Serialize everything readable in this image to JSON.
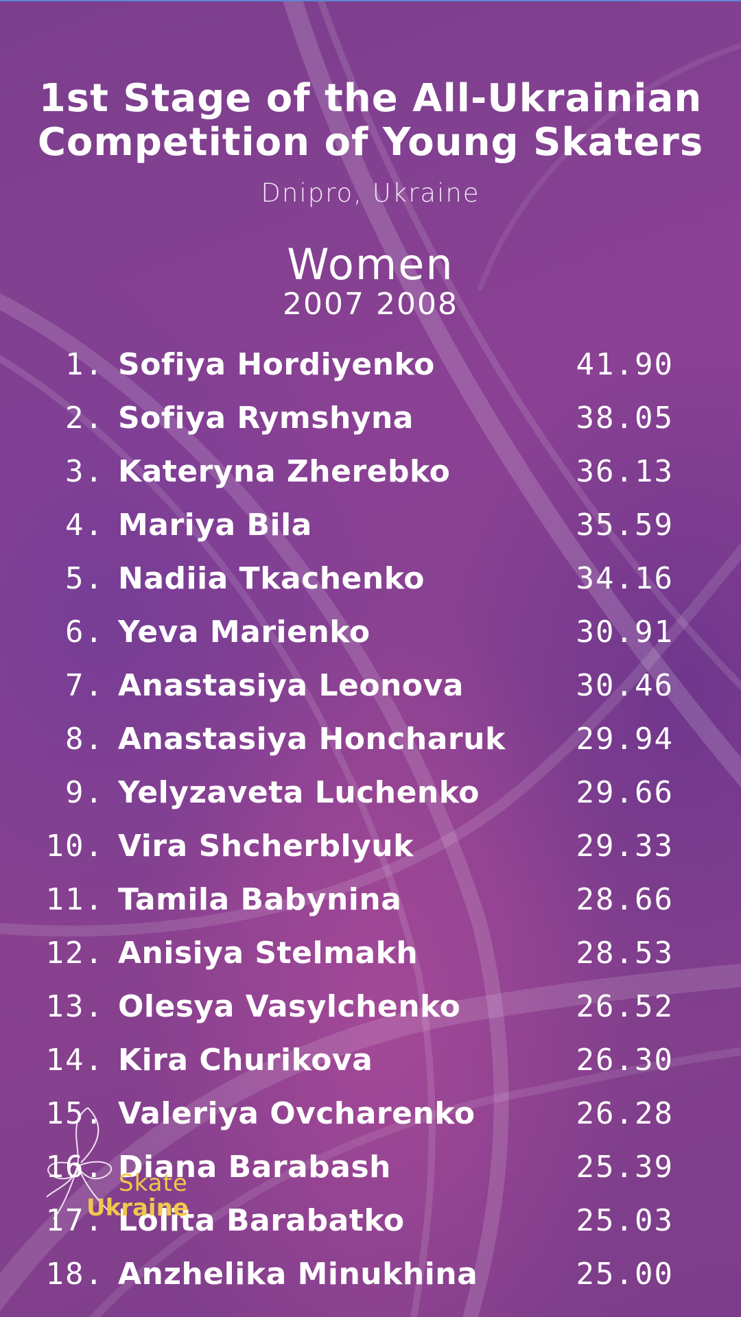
{
  "title_line1": "1st Stage of the All-Ukrainian",
  "title_line2": "Competition of Young Skaters",
  "location": "Dnipro, Ukraine",
  "category": "Women",
  "years": "2007 2008",
  "results": [
    {
      "rank": "1.",
      "name": "Sofiya Hordiyenko",
      "score": "41.90"
    },
    {
      "rank": "2.",
      "name": "Sofiya Rymshyna",
      "score": "38.05"
    },
    {
      "rank": "3.",
      "name": "Kateryna Zherebko",
      "score": "36.13"
    },
    {
      "rank": "4.",
      "name": "Mariya Bila",
      "score": "35.59"
    },
    {
      "rank": "5.",
      "name": "Nadiia Tkachenko",
      "score": "34.16"
    },
    {
      "rank": "6.",
      "name": "Yeva Marienko",
      "score": "30.91"
    },
    {
      "rank": "7.",
      "name": "Anastasiya Leonova",
      "score": "30.46"
    },
    {
      "rank": "8.",
      "name": "Anastasiya Honcharuk",
      "score": "29.94"
    },
    {
      "rank": "9.",
      "name": "Yelyzaveta Luchenko",
      "score": "29.66"
    },
    {
      "rank": "10.",
      "name": "Vira Shcherblyuk",
      "score": "29.33"
    },
    {
      "rank": "11.",
      "name": "Tamila Babynina",
      "score": "28.66"
    },
    {
      "rank": "12.",
      "name": "Anisiya Stelmakh",
      "score": "28.53"
    },
    {
      "rank": "13.",
      "name": "Olesya Vasylchenko",
      "score": "26.52"
    },
    {
      "rank": "14.",
      "name": "Kira Churikova",
      "score": "26.30"
    },
    {
      "rank": "15.",
      "name": "Valeriya Ovcharenko",
      "score": "26.28"
    },
    {
      "rank": "16.",
      "name": "Diana Barabash",
      "score": "25.39"
    },
    {
      "rank": "17.",
      "name": "Lolita Barabatko",
      "score": "25.03"
    },
    {
      "rank": "18.",
      "name": "Anzhelika Minukhina",
      "score": "25.00"
    }
  ],
  "logo": {
    "line1": "Skate",
    "line2": "Ukraine",
    "color": "#f1c84a"
  },
  "colors": {
    "background": "#7a3d8e",
    "text": "#ffffff"
  }
}
